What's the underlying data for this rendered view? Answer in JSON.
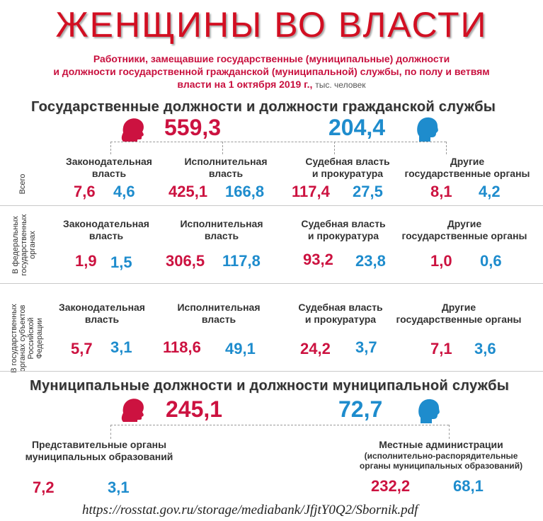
{
  "title": "ЖЕНЩИНЫ ВО ВЛАСТИ",
  "subtitle": {
    "line1": "Работники, замещавшие государственные (муниципальные) должности",
    "line2": "и должности государственной гражданской (муниципальной) службы, по полу и ветвям",
    "line3": "власти на 1 октября 2019 г.,",
    "unit": "тыс. человек"
  },
  "colors": {
    "women": "#cc1240",
    "men": "#1e8ccd",
    "title": "#d20f22"
  },
  "icons": {
    "women": "female-head-icon",
    "men": "male-head-icon"
  },
  "state": {
    "heading": "Государственные должности и должности гражданской службы",
    "total_women": "559,3",
    "total_men": "204,4",
    "rows": [
      {
        "label": "Всего",
        "categories": [
          {
            "name": "Законодательная власть",
            "line1": "Законодательная",
            "line2": "власть",
            "women": "7,6",
            "men": "4,6"
          },
          {
            "name": "Исполнительная власть",
            "line1": "Исполнительная",
            "line2": "власть",
            "women": "425,1",
            "men": "166,8"
          },
          {
            "name": "Судебная власть и прокуратура",
            "line1": "Судебная власть",
            "line2": "и прокуратура",
            "women": "117,4",
            "men": "27,5"
          },
          {
            "name": "Другие государственные органы",
            "line1": "Другие",
            "line2": "государственные органы",
            "women": "8,1",
            "men": "4,2"
          }
        ]
      },
      {
        "label_line1": "В федеральных",
        "label_line2": "государственных",
        "label_line3": "органах",
        "categories": [
          {
            "line1": "Законодательная",
            "line2": "власть",
            "women": "1,9",
            "men": "1,5"
          },
          {
            "line1": "Исполнительная",
            "line2": "власть",
            "women": "306,5",
            "men": "117,8"
          },
          {
            "line1": "Судебная власть",
            "line2": "и прокуратура",
            "women": "93,2",
            "men": "23,8"
          },
          {
            "line1": "Другие",
            "line2": "государственные органы",
            "women": "1,0",
            "men": "0,6"
          }
        ]
      },
      {
        "label_line1": "В государственных",
        "label_line2": "органах субъектов",
        "label_line3": "Российской",
        "label_line4": "Федерации",
        "categories": [
          {
            "line1": "Законодательная",
            "line2": "власть",
            "women": "5,7",
            "men": "3,1"
          },
          {
            "line1": "Исполнительная",
            "line2": "власть",
            "women": "118,6",
            "men": "49,1"
          },
          {
            "line1": "Судебная власть",
            "line2": "и прокуратура",
            "women": "24,2",
            "men": "3,7"
          },
          {
            "line1": "Другие",
            "line2": "государственные органы",
            "women": "7,1",
            "men": "3,6"
          }
        ]
      }
    ]
  },
  "municipal": {
    "heading": "Муниципальные должности и должности муниципальной службы",
    "total_women": "245,1",
    "total_men": "72,7",
    "representative": {
      "line1": "Представительные органы",
      "line2": "муниципальных образований",
      "women": "7,2",
      "men": "3,1"
    },
    "local_admin": {
      "line1": "Местные администрации",
      "line2": "(исполнительно-распорядительные",
      "line3": "органы муниципальных образований)",
      "women": "232,2",
      "men": "68,1"
    }
  },
  "source_url": "https://rosstat.gov.ru/storage/mediabank/JfjtY0Q2/Sbornik.pdf"
}
